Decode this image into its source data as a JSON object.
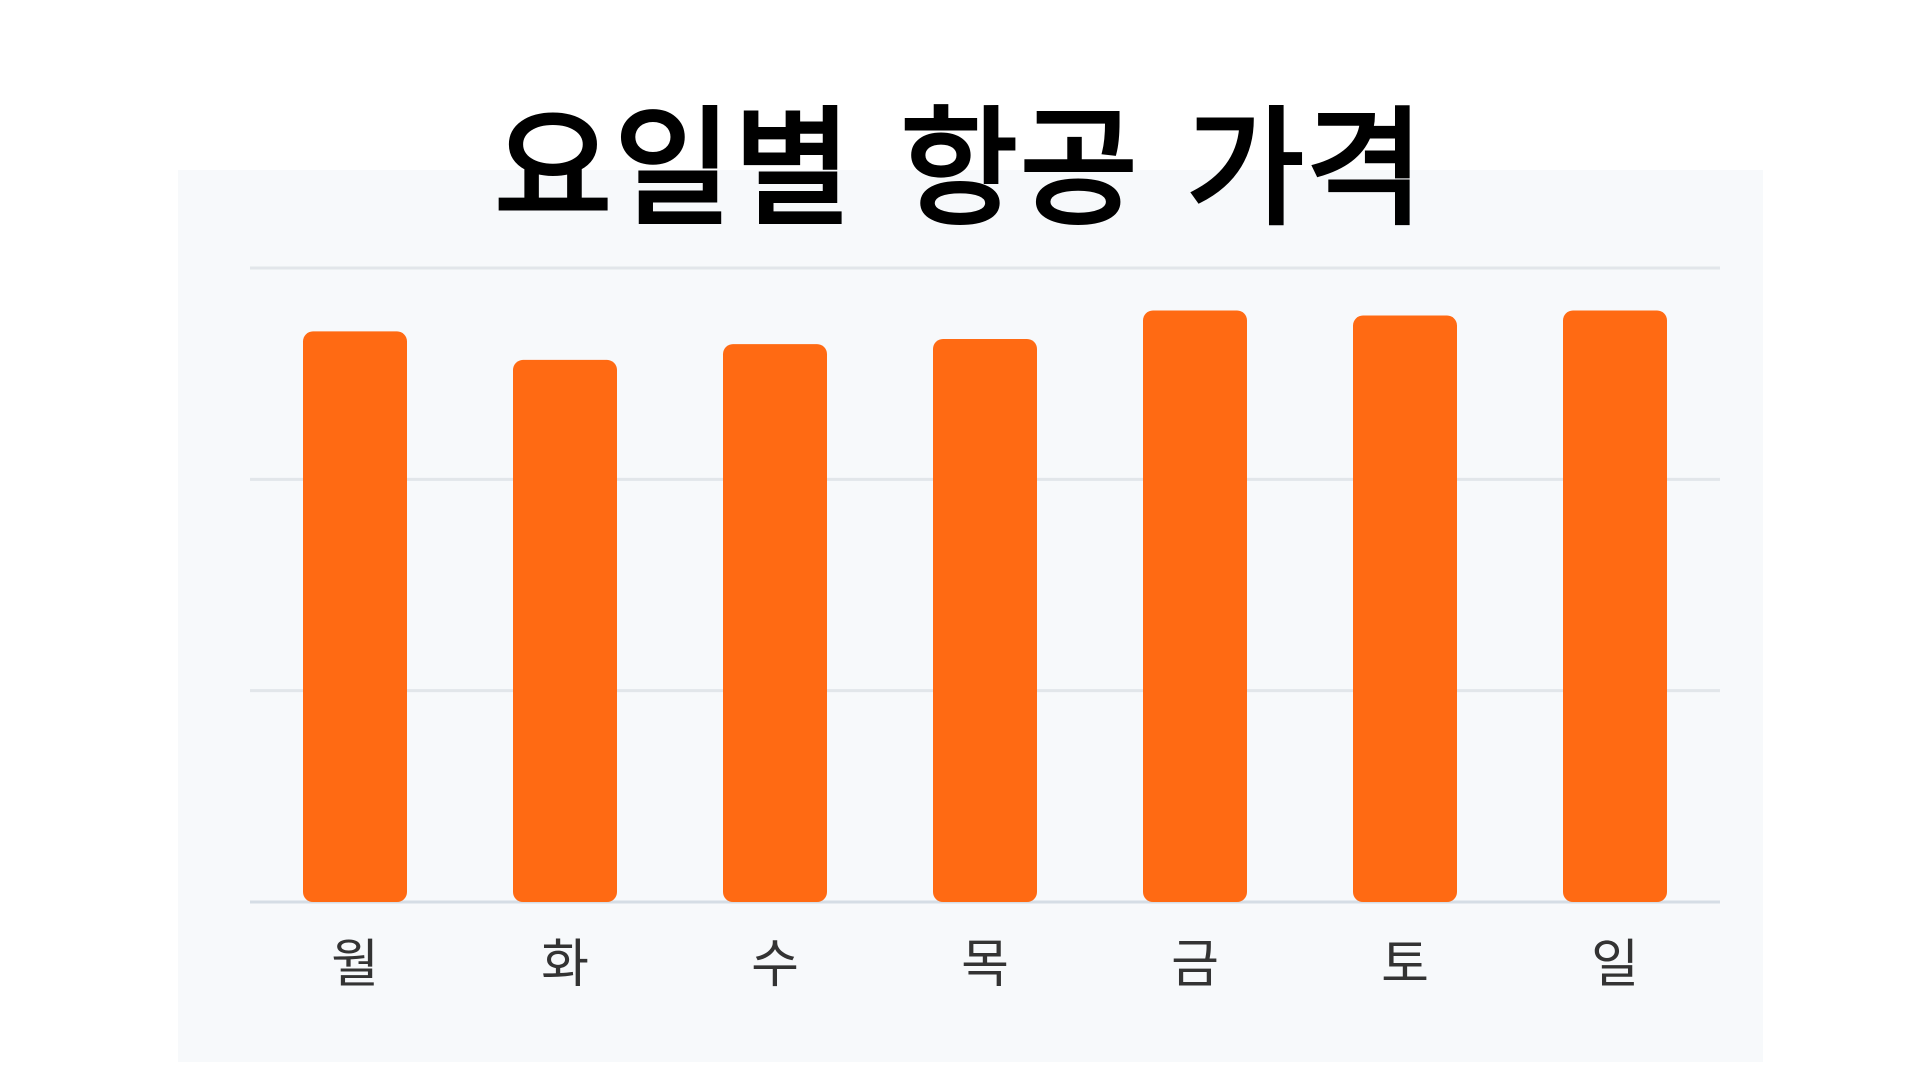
{
  "chart_data": {
    "type": "bar",
    "title": "요일별 항공 가격",
    "categories": [
      "월",
      "화",
      "수",
      "목",
      "금",
      "토",
      "일"
    ],
    "values": [
      90,
      85.5,
      88,
      88.8,
      93.3,
      92.5,
      93.3
    ],
    "ylim": [
      0,
      100
    ],
    "grid": true,
    "show_y_tick_labels": false,
    "bar_color": "#ff6a13",
    "background_color": "#f7f9fb",
    "gridline_color": "#e2e6ea"
  }
}
